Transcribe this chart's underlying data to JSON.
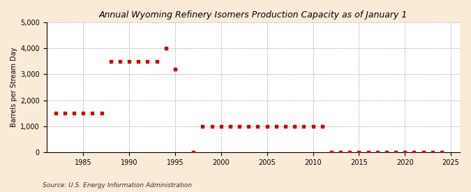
{
  "title": "Annual Wyoming Refinery Isomers Production Capacity as of January 1",
  "ylabel": "Barrels per Stream Day",
  "source": "Source: U.S. Energy Information Administration",
  "background_color": "#faebd7",
  "plot_background_color": "#ffffff",
  "dot_color": "#cc0000",
  "xlim": [
    1981,
    2026
  ],
  "ylim": [
    0,
    5000
  ],
  "yticks": [
    0,
    1000,
    2000,
    3000,
    4000,
    5000
  ],
  "xticks": [
    1985,
    1990,
    1995,
    2000,
    2005,
    2010,
    2015,
    2020,
    2025
  ],
  "data": [
    [
      1982,
      1500
    ],
    [
      1983,
      1500
    ],
    [
      1984,
      1500
    ],
    [
      1985,
      1500
    ],
    [
      1986,
      1500
    ],
    [
      1987,
      1500
    ],
    [
      1988,
      3500
    ],
    [
      1989,
      3500
    ],
    [
      1990,
      3500
    ],
    [
      1991,
      3500
    ],
    [
      1992,
      3500
    ],
    [
      1993,
      3500
    ],
    [
      1994,
      4000
    ],
    [
      1995,
      3200
    ],
    [
      1997,
      10
    ],
    [
      1998,
      1000
    ],
    [
      1999,
      1000
    ],
    [
      2000,
      1000
    ],
    [
      2001,
      1000
    ],
    [
      2002,
      1000
    ],
    [
      2003,
      1000
    ],
    [
      2004,
      1000
    ],
    [
      2005,
      1000
    ],
    [
      2006,
      1000
    ],
    [
      2007,
      1000
    ],
    [
      2008,
      1000
    ],
    [
      2009,
      1000
    ],
    [
      2010,
      1000
    ],
    [
      2011,
      1000
    ],
    [
      2012,
      10
    ],
    [
      2013,
      10
    ],
    [
      2014,
      10
    ],
    [
      2015,
      10
    ],
    [
      2016,
      10
    ],
    [
      2017,
      10
    ],
    [
      2018,
      10
    ],
    [
      2019,
      10
    ],
    [
      2020,
      10
    ],
    [
      2021,
      10
    ],
    [
      2022,
      10
    ],
    [
      2023,
      10
    ],
    [
      2024,
      10
    ]
  ],
  "title_fontsize": 9,
  "ylabel_fontsize": 7,
  "tick_fontsize": 7,
  "source_fontsize": 6.5,
  "marker_size": 8,
  "grid_color": "#aaaaaa",
  "grid_linestyle": "--",
  "grid_linewidth": 0.5
}
